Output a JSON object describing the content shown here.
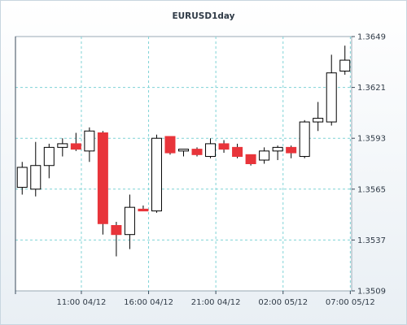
{
  "chart_data": {
    "type": "candlestick",
    "title": "EURUSD1day",
    "xlabel": "",
    "ylabel": "",
    "y_axis_position": "right",
    "ylim": [
      1.3509,
      1.3649
    ],
    "y_ticks": [
      "1.3509",
      "1.3537",
      "1.3565",
      "1.3593",
      "1.3621",
      "1.3649"
    ],
    "x_ticks": [
      "11:00 04/12",
      "16:00 04/12",
      "21:00 04/12",
      "02:00 05/12",
      "07:00 05/12"
    ],
    "x_tick_index": [
      4.4,
      9.4,
      14.4,
      19.4,
      24.4
    ],
    "grid": true,
    "legend": "none",
    "colors": {
      "up_fill": "#ffffff",
      "down_fill": "#e8343a",
      "candle_edge": "#000000",
      "grid": "#7fd3d6",
      "axis": "#3a4a5a"
    },
    "candles": [
      {
        "open": 1.3566,
        "high": 1.358,
        "low": 1.3562,
        "close": 1.3577
      },
      {
        "open": 1.3565,
        "high": 1.3591,
        "low": 1.3561,
        "close": 1.3578
      },
      {
        "open": 1.3578,
        "high": 1.359,
        "low": 1.3571,
        "close": 1.3588
      },
      {
        "open": 1.3588,
        "high": 1.3593,
        "low": 1.3583,
        "close": 1.359
      },
      {
        "open": 1.359,
        "high": 1.3596,
        "low": 1.3586,
        "close": 1.3587
      },
      {
        "open": 1.3586,
        "high": 1.3599,
        "low": 1.358,
        "close": 1.3597
      },
      {
        "open": 1.3596,
        "high": 1.3597,
        "low": 1.354,
        "close": 1.3546
      },
      {
        "open": 1.3545,
        "high": 1.3547,
        "low": 1.3528,
        "close": 1.354
      },
      {
        "open": 1.354,
        "high": 1.3562,
        "low": 1.3532,
        "close": 1.3555
      },
      {
        "open": 1.3554,
        "high": 1.3556,
        "low": 1.3553,
        "close": 1.3553
      },
      {
        "open": 1.3553,
        "high": 1.3595,
        "low": 1.3552,
        "close": 1.3593
      },
      {
        "open": 1.3594,
        "high": 1.3594,
        "low": 1.3584,
        "close": 1.3585
      },
      {
        "open": 1.3586,
        "high": 1.3587,
        "low": 1.3583,
        "close": 1.3587
      },
      {
        "open": 1.3587,
        "high": 1.3588,
        "low": 1.3583,
        "close": 1.3584
      },
      {
        "open": 1.3583,
        "high": 1.3593,
        "low": 1.3582,
        "close": 1.359
      },
      {
        "open": 1.359,
        "high": 1.3592,
        "low": 1.3585,
        "close": 1.3587
      },
      {
        "open": 1.3588,
        "high": 1.359,
        "low": 1.3582,
        "close": 1.3583
      },
      {
        "open": 1.3584,
        "high": 1.3584,
        "low": 1.3578,
        "close": 1.3579
      },
      {
        "open": 1.3581,
        "high": 1.3588,
        "low": 1.3579,
        "close": 1.3586
      },
      {
        "open": 1.3586,
        "high": 1.3589,
        "low": 1.3581,
        "close": 1.3588
      },
      {
        "open": 1.3588,
        "high": 1.3589,
        "low": 1.3582,
        "close": 1.3585
      },
      {
        "open": 1.3583,
        "high": 1.3603,
        "low": 1.3582,
        "close": 1.3602
      },
      {
        "open": 1.3602,
        "high": 1.3613,
        "low": 1.3597,
        "close": 1.3604
      },
      {
        "open": 1.3602,
        "high": 1.3639,
        "low": 1.36,
        "close": 1.3629
      },
      {
        "open": 1.363,
        "high": 1.3644,
        "low": 1.3628,
        "close": 1.3636
      }
    ]
  }
}
